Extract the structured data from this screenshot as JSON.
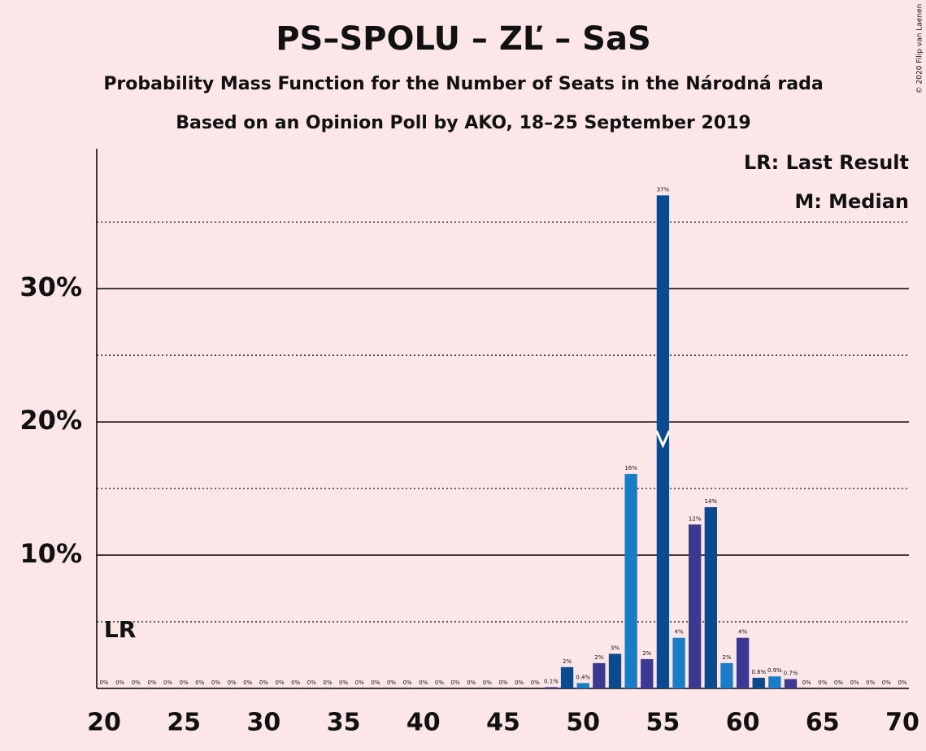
{
  "chart_data": {
    "type": "bar",
    "title": "PS–SPOLU – ZĽ – SaS",
    "subtitle": "Probability Mass Function for the Number of Seats in the Národná rada",
    "subtitle2": "Based on an Opinion Poll by AKO, 18–25 September 2019",
    "copyright": "© 2020 Filip van Laenen",
    "legend": [
      "LR: Last Result",
      "M: Median"
    ],
    "legend_position": "top-right",
    "last_result": 21,
    "last_result_label": "LR",
    "median": 55,
    "x": [
      20,
      21,
      22,
      23,
      24,
      25,
      26,
      27,
      28,
      29,
      30,
      31,
      32,
      33,
      34,
      35,
      36,
      37,
      38,
      39,
      40,
      41,
      42,
      43,
      44,
      45,
      46,
      47,
      48,
      49,
      50,
      51,
      52,
      53,
      54,
      55,
      56,
      57,
      58,
      59,
      60,
      61,
      62,
      63,
      64,
      65,
      66,
      67,
      68,
      69,
      70
    ],
    "values": [
      0,
      0,
      0,
      0,
      0,
      0,
      0,
      0,
      0,
      0,
      0,
      0,
      0,
      0,
      0,
      0,
      0,
      0,
      0,
      0,
      0,
      0,
      0,
      0,
      0,
      0,
      0,
      0,
      0.1,
      1.6,
      0.4,
      1.9,
      2.6,
      16.1,
      2.2,
      37,
      3.8,
      12.3,
      13.6,
      1.9,
      3.8,
      0.8,
      0.9,
      0.7,
      0,
      0,
      0,
      0,
      0,
      0,
      0
    ],
    "value_labels": [
      "0%",
      "0%",
      "0%",
      "0%",
      "0%",
      "0%",
      "0%",
      "0%",
      "0%",
      "0%",
      "0%",
      "0%",
      "0%",
      "0%",
      "0%",
      "0%",
      "0%",
      "0%",
      "0%",
      "0%",
      "0%",
      "0%",
      "0%",
      "0%",
      "0%",
      "0%",
      "0%",
      "0%",
      "0.1%",
      "2%",
      "0.4%",
      "2%",
      "3%",
      "16%",
      "2%",
      "37%",
      "4%",
      "12%",
      "14%",
      "2%",
      "4%",
      "0.8%",
      "0.9%",
      "0.7%",
      "0%",
      "0%",
      "0%",
      "0%",
      "0%",
      "0%",
      "0%"
    ],
    "colors": [
      "#3b3992",
      "#0c4a8f",
      "#1a7cc4"
    ],
    "xlim": [
      20,
      70
    ],
    "xticks": [
      20,
      25,
      30,
      35,
      40,
      45,
      50,
      55,
      60,
      65,
      70
    ],
    "ylim": [
      0,
      40.5
    ],
    "yticks": [
      {
        "value": 10,
        "label": "10%"
      },
      {
        "value": 20,
        "label": "20%"
      },
      {
        "value": 30,
        "label": "30%"
      }
    ],
    "minor_yticks": [
      5,
      15,
      25,
      35
    ],
    "grid": true
  }
}
